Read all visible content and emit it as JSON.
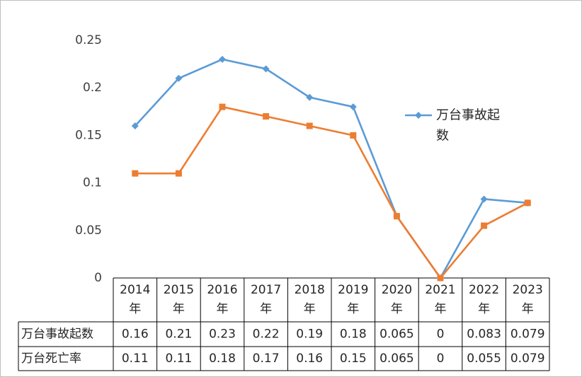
{
  "chart_data": {
    "type": "line",
    "categories": [
      [
        "2014",
        "年"
      ],
      [
        "2015",
        "年"
      ],
      [
        "2016",
        "年"
      ],
      [
        "2017",
        "年"
      ],
      [
        "2018",
        "年"
      ],
      [
        "2019",
        "年"
      ],
      [
        "2020",
        "年"
      ],
      [
        "2021",
        "年"
      ],
      [
        "2022",
        "年"
      ],
      [
        "2023",
        "年"
      ]
    ],
    "series": [
      {
        "name": "万台事故起数",
        "legend_lines": [
          "万台事故起",
          "数"
        ],
        "values": [
          0.16,
          0.21,
          0.23,
          0.22,
          0.19,
          0.18,
          0.065,
          0,
          0.083,
          0.079
        ],
        "labels": [
          "0.16",
          "0.21",
          "0.23",
          "0.22",
          "0.19",
          "0.18",
          "0.065",
          "0",
          "0.083",
          "0.079"
        ],
        "color": "#5B9BD5",
        "marker": "diamond"
      },
      {
        "name": "万台死亡率",
        "values": [
          0.11,
          0.11,
          0.18,
          0.17,
          0.16,
          0.15,
          0.065,
          0,
          0.055,
          0.079
        ],
        "labels": [
          "0.11",
          "0.11",
          "0.18",
          "0.17",
          "0.16",
          "0.15",
          "0.065",
          "0",
          "0.055",
          "0.079"
        ],
        "color": "#ED7D31",
        "marker": "square"
      }
    ],
    "yticks": [
      "0",
      "0.05",
      "0.1",
      "0.15",
      "0.2",
      "0.25"
    ],
    "ylim": [
      0,
      0.25
    ],
    "grid": false,
    "legend_position": "right",
    "data_table": true
  }
}
